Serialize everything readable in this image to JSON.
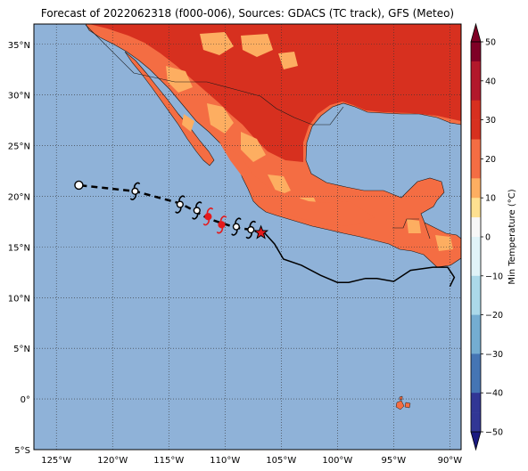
{
  "title": "Forecast of 2022062318 (f000-006), Sources: GDACS (TC track), GFS (Meteo)",
  "colors": {
    "ocean": "#8fb2d8",
    "land_hot": "#d7301f",
    "land_warm": "#f46d43",
    "land_mild": "#fdae61",
    "track": "#000000",
    "forecast_symbol": "#e41a1c",
    "star": "#e41a1c"
  },
  "map": {
    "lat_labels": [
      "35°N",
      "30°N",
      "25°N",
      "20°N",
      "15°N",
      "10°N",
      "5°N",
      "0°",
      "5°S"
    ],
    "lat_values": [
      35,
      30,
      25,
      20,
      15,
      10,
      5,
      0,
      -5
    ],
    "lon_labels": [
      "125°W",
      "120°W",
      "115°W",
      "110°W",
      "105°W",
      "100°W",
      "95°W",
      "90°W"
    ],
    "lon_values": [
      -125,
      -120,
      -115,
      -110,
      -105,
      -100,
      -95,
      -90
    ],
    "lon_range": [
      -127,
      -89
    ],
    "lat_range": [
      -5,
      37
    ]
  },
  "track": {
    "past": [
      [
        -106.5,
        16.4
      ],
      [
        -105.6,
        15.3
      ],
      [
        -104.8,
        13.8
      ],
      [
        -103.2,
        13.2
      ],
      [
        -101.5,
        12.2
      ],
      [
        -100.0,
        11.5
      ],
      [
        -99.0,
        11.5
      ],
      [
        -97.5,
        11.9
      ],
      [
        -96.5,
        11.9
      ],
      [
        -95.0,
        11.6
      ],
      [
        -93.5,
        12.7
      ],
      [
        -91.5,
        13.0
      ],
      [
        -90.2,
        13.0
      ],
      [
        -89.6,
        12.0
      ],
      [
        -90.0,
        11.1
      ]
    ],
    "forecast": [
      [
        -106.8,
        16.4
      ],
      [
        -107.7,
        16.7
      ],
      [
        -109.0,
        16.9
      ],
      [
        -110.4,
        17.4
      ],
      [
        -111.5,
        17.8
      ],
      [
        -112.6,
        18.5
      ],
      [
        -114.0,
        19.3
      ],
      [
        -118.0,
        20.5
      ],
      [
        -123.0,
        21.1
      ]
    ],
    "symbols": [
      {
        "lon": -107.7,
        "lat": 16.7,
        "color": "black"
      },
      {
        "lon": -109.0,
        "lat": 17.0,
        "color": "black"
      },
      {
        "lon": -110.3,
        "lat": 17.2,
        "color": "red"
      },
      {
        "lon": -111.5,
        "lat": 18.0,
        "color": "red"
      },
      {
        "lon": -112.5,
        "lat": 18.6,
        "color": "black"
      },
      {
        "lon": -114.0,
        "lat": 19.2,
        "color": "black"
      },
      {
        "lon": -118.0,
        "lat": 20.5,
        "color": "black"
      }
    ],
    "start": {
      "lon": -123.0,
      "lat": 21.1
    },
    "current": {
      "lon": -106.8,
      "lat": 16.4
    }
  },
  "colorbar": {
    "label": "Min Temperature (°C)",
    "ticks": [
      "50",
      "40",
      "30",
      "20",
      "10",
      "0",
      "−10",
      "−20",
      "−30",
      "−40",
      "−50"
    ],
    "colors": [
      "#7f0026",
      "#b2182b",
      "#d7301f",
      "#f46d43",
      "#fdae61",
      "#fee090",
      "#f7f7f7",
      "#e0f3f8",
      "#abd9e9",
      "#74add1",
      "#4575b4",
      "#313695",
      "#1a1a80"
    ]
  }
}
